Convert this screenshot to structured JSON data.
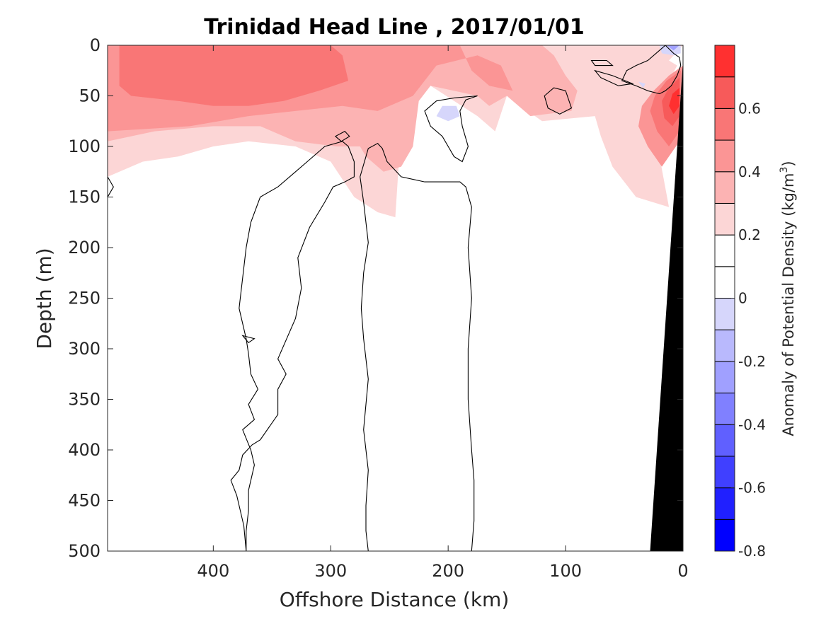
{
  "chart_data": {
    "type": "heatmap",
    "title": "Trinidad Head Line , 2017/01/01",
    "xlabel": "Offshore Distance (km)",
    "ylabel": "Depth (m)",
    "colorbar_label": "Anomaly of Potential Density (kg/m",
    "colorbar_label_sup": "3",
    "colorbar_label_close": ")",
    "xlim": [
      490,
      0
    ],
    "ylim": [
      0,
      500
    ],
    "x_reversed": true,
    "y_reversed": true,
    "xticks": [
      400,
      300,
      200,
      100,
      0
    ],
    "yticks": [
      0,
      50,
      100,
      150,
      200,
      250,
      300,
      350,
      400,
      450,
      500
    ],
    "colorbar_range": [
      -0.8,
      0.8
    ],
    "colorbar_ticks": [
      -0.8,
      -0.6,
      -0.4,
      -0.2,
      0,
      0.2,
      0.4,
      0.6
    ],
    "colorbar_levels": [
      -0.8,
      -0.7,
      -0.6,
      -0.5,
      -0.4,
      -0.3,
      -0.2,
      -0.1,
      0,
      0.1,
      0.2,
      0.3,
      0.4,
      0.5,
      0.6,
      0.7,
      0.8
    ],
    "colorbar_colors": [
      "#0000ff",
      "#2020ff",
      "#4040ff",
      "#6060ff",
      "#8080ff",
      "#a0a0ff",
      "#b9b9fd",
      "#d6d6fb",
      "#ffffff",
      "#ffffff",
      "#fcd6d6",
      "#fcb3b3",
      "#fb9595",
      "#f97676",
      "#f75a5a",
      "#ff3030",
      "#ff0000"
    ],
    "anomaly_regions": [
      {
        "level": 0.1,
        "color": "#fcd6d6",
        "points": [
          [
            490,
            0
          ],
          [
            0,
            0
          ],
          [
            12,
            15
          ],
          [
            5,
            20
          ],
          [
            28,
            70
          ],
          [
            20,
            110
          ],
          [
            12,
            160
          ],
          [
            40,
            150
          ],
          [
            60,
            120
          ],
          [
            70,
            90
          ],
          [
            75,
            70
          ],
          [
            120,
            75
          ],
          [
            150,
            50
          ],
          [
            160,
            85
          ],
          [
            175,
            70
          ],
          [
            215,
            40
          ],
          [
            230,
            50
          ],
          [
            240,
            80
          ],
          [
            245,
            170
          ],
          [
            260,
            165
          ],
          [
            280,
            150
          ],
          [
            300,
            115
          ],
          [
            330,
            100
          ],
          [
            370,
            95
          ],
          [
            400,
            100
          ],
          [
            430,
            110
          ],
          [
            460,
            115
          ],
          [
            490,
            130
          ]
        ]
      },
      {
        "level": 0.2,
        "color": "#fcb3b3",
        "points": [
          [
            490,
            0
          ],
          [
            120,
            0
          ],
          [
            110,
            10
          ],
          [
            100,
            30
          ],
          [
            90,
            45
          ],
          [
            95,
            65
          ],
          [
            130,
            70
          ],
          [
            150,
            50
          ],
          [
            165,
            60
          ],
          [
            175,
            50
          ],
          [
            215,
            40
          ],
          [
            225,
            55
          ],
          [
            230,
            100
          ],
          [
            240,
            120
          ],
          [
            255,
            125
          ],
          [
            270,
            110
          ],
          [
            275,
            100
          ],
          [
            295,
            100
          ],
          [
            330,
            95
          ],
          [
            360,
            80
          ],
          [
            400,
            80
          ],
          [
            450,
            85
          ],
          [
            490,
            95
          ]
        ]
      },
      {
        "level": 0.3,
        "color": "#fb9595",
        "points": [
          [
            490,
            0
          ],
          [
            190,
            0
          ],
          [
            180,
            25
          ],
          [
            165,
            40
          ],
          [
            145,
            45
          ],
          [
            155,
            20
          ],
          [
            175,
            10
          ],
          [
            210,
            20
          ],
          [
            230,
            50
          ],
          [
            260,
            65
          ],
          [
            290,
            60
          ],
          [
            330,
            65
          ],
          [
            370,
            70
          ],
          [
            420,
            80
          ],
          [
            490,
            85
          ]
        ]
      },
      {
        "level": 0.4,
        "color": "#f97676",
        "points": [
          [
            480,
            0
          ],
          [
            300,
            0
          ],
          [
            290,
            10
          ],
          [
            285,
            35
          ],
          [
            310,
            45
          ],
          [
            340,
            55
          ],
          [
            370,
            60
          ],
          [
            400,
            60
          ],
          [
            430,
            55
          ],
          [
            470,
            50
          ],
          [
            480,
            40
          ]
        ]
      },
      {
        "level": 0.3,
        "color": "#fb9595",
        "points": [
          [
            0,
            20
          ],
          [
            12,
            30
          ],
          [
            25,
            45
          ],
          [
            35,
            60
          ],
          [
            38,
            80
          ],
          [
            30,
            100
          ],
          [
            18,
            120
          ],
          [
            3,
            95
          ]
        ]
      },
      {
        "level": 0.4,
        "color": "#f97676",
        "points": [
          [
            2,
            25
          ],
          [
            14,
            35
          ],
          [
            24,
            50
          ],
          [
            28,
            65
          ],
          [
            22,
            85
          ],
          [
            12,
            100
          ],
          [
            3,
            85
          ]
        ]
      },
      {
        "level": 0.5,
        "color": "#f75a5a",
        "points": [
          [
            3,
            32
          ],
          [
            12,
            42
          ],
          [
            18,
            55
          ],
          [
            16,
            72
          ],
          [
            9,
            80
          ],
          [
            3,
            70
          ]
        ]
      },
      {
        "level": 0.6,
        "color": "#ff3030",
        "points": [
          [
            3,
            42
          ],
          [
            9,
            48
          ],
          [
            12,
            60
          ],
          [
            8,
            68
          ],
          [
            3,
            60
          ]
        ]
      },
      {
        "level": -0.1,
        "color": "#d6d6fb",
        "points": [
          [
            200,
            75
          ],
          [
            210,
            70
          ],
          [
            205,
            60
          ],
          [
            193,
            60
          ],
          [
            190,
            70
          ]
        ]
      },
      {
        "level": -0.1,
        "color": "#d6d6fb",
        "points": [
          [
            2,
            0
          ],
          [
            20,
            0
          ],
          [
            18,
            8
          ],
          [
            8,
            10
          ],
          [
            2,
            8
          ]
        ]
      },
      {
        "level": -0.1,
        "color": "#d6d6fb",
        "points": [
          [
            32,
            38
          ],
          [
            38,
            36
          ],
          [
            34,
            42
          ]
        ]
      },
      {
        "level": -0.3,
        "color": "#a0a0ff",
        "points": [
          [
            3,
            0
          ],
          [
            14,
            0
          ],
          [
            8,
            5
          ]
        ]
      }
    ],
    "zero_contours": [
      {
        "points": [
          [
            372,
            500
          ],
          [
            374,
            475
          ],
          [
            380,
            445
          ],
          [
            385,
            430
          ],
          [
            378,
            420
          ],
          [
            375,
            405
          ],
          [
            367,
            395
          ],
          [
            360,
            390
          ],
          [
            345,
            365
          ],
          [
            345,
            340
          ],
          [
            338,
            325
          ],
          [
            345,
            310
          ],
          [
            330,
            270
          ],
          [
            325,
            240
          ],
          [
            328,
            210
          ],
          [
            318,
            180
          ],
          [
            305,
            155
          ],
          [
            298,
            140
          ],
          [
            288,
            135
          ],
          [
            280,
            130
          ],
          [
            280,
            115
          ],
          [
            285,
            100
          ],
          [
            290,
            95
          ],
          [
            305,
            100
          ],
          [
            320,
            115
          ],
          [
            330,
            125
          ],
          [
            345,
            140
          ],
          [
            360,
            150
          ],
          [
            368,
            175
          ],
          [
            372,
            200
          ],
          [
            375,
            230
          ],
          [
            378,
            260
          ],
          [
            372,
            290
          ],
          [
            370,
            305
          ],
          [
            368,
            325
          ],
          [
            362,
            340
          ],
          [
            370,
            355
          ],
          [
            365,
            370
          ],
          [
            375,
            380
          ],
          [
            368,
            400
          ],
          [
            365,
            415
          ],
          [
            370,
            440
          ],
          [
            370,
            460
          ],
          [
            372,
            480
          ],
          [
            372,
            500
          ]
        ]
      },
      {
        "points": [
          [
            180,
            500
          ],
          [
            178,
            470
          ],
          [
            178,
            430
          ],
          [
            180,
            400
          ],
          [
            183,
            350
          ],
          [
            183,
            300
          ],
          [
            180,
            250
          ],
          [
            183,
            200
          ],
          [
            180,
            160
          ],
          [
            185,
            140
          ],
          [
            190,
            135
          ],
          [
            220,
            135
          ],
          [
            240,
            130
          ],
          [
            252,
            115
          ],
          [
            256,
            102
          ],
          [
            260,
            97
          ],
          [
            268,
            102
          ],
          [
            270,
            110
          ],
          [
            275,
            130
          ],
          [
            272,
            155
          ],
          [
            270,
            175
          ],
          [
            268,
            195
          ],
          [
            272,
            225
          ],
          [
            274,
            260
          ],
          [
            272,
            290
          ],
          [
            268,
            330
          ],
          [
            272,
            380
          ],
          [
            268,
            420
          ],
          [
            270,
            455
          ],
          [
            270,
            480
          ],
          [
            268,
            500
          ]
        ]
      },
      {
        "points": [
          [
            375,
            287
          ],
          [
            365,
            290
          ],
          [
            370,
            294
          ]
        ]
      },
      {
        "points": [
          [
            288,
            85
          ],
          [
            284,
            90
          ],
          [
            291,
            95
          ],
          [
            296,
            90
          ]
        ]
      },
      {
        "points": [
          [
            175,
            50
          ],
          [
            185,
            54
          ],
          [
            190,
            65
          ],
          [
            188,
            80
          ],
          [
            183,
            100
          ],
          [
            188,
            115
          ],
          [
            195,
            110
          ],
          [
            205,
            90
          ],
          [
            215,
            80
          ],
          [
            220,
            65
          ],
          [
            210,
            55
          ],
          [
            195,
            52
          ]
        ]
      },
      {
        "points": [
          [
            100,
            45
          ],
          [
            110,
            42
          ],
          [
            118,
            50
          ],
          [
            115,
            62
          ],
          [
            105,
            68
          ],
          [
            95,
            62
          ]
        ]
      },
      {
        "points": [
          [
            43,
            38
          ],
          [
            60,
            30
          ],
          [
            75,
            25
          ],
          [
            70,
            32
          ],
          [
            55,
            40
          ]
        ]
      },
      {
        "points": [
          [
            60,
            20
          ],
          [
            65,
            15
          ],
          [
            78,
            15
          ],
          [
            75,
            20
          ]
        ]
      },
      {
        "points": [
          [
            15,
            0
          ],
          [
            20,
            5
          ],
          [
            30,
            15
          ],
          [
            40,
            20
          ],
          [
            48,
            25
          ],
          [
            52,
            35
          ],
          [
            40,
            40
          ],
          [
            30,
            45
          ],
          [
            20,
            48
          ],
          [
            15,
            45
          ],
          [
            10,
            40
          ],
          [
            5,
            30
          ],
          [
            2,
            20
          ],
          [
            3,
            12
          ],
          [
            8,
            8
          ]
        ]
      },
      {
        "points": [
          [
            490,
            130
          ],
          [
            485,
            140
          ],
          [
            490,
            150
          ]
        ]
      }
    ],
    "bathymetry": {
      "color": "#000000",
      "points": [
        [
          0,
          15
        ],
        [
          0,
          500
        ],
        [
          28,
          500
        ]
      ]
    }
  }
}
